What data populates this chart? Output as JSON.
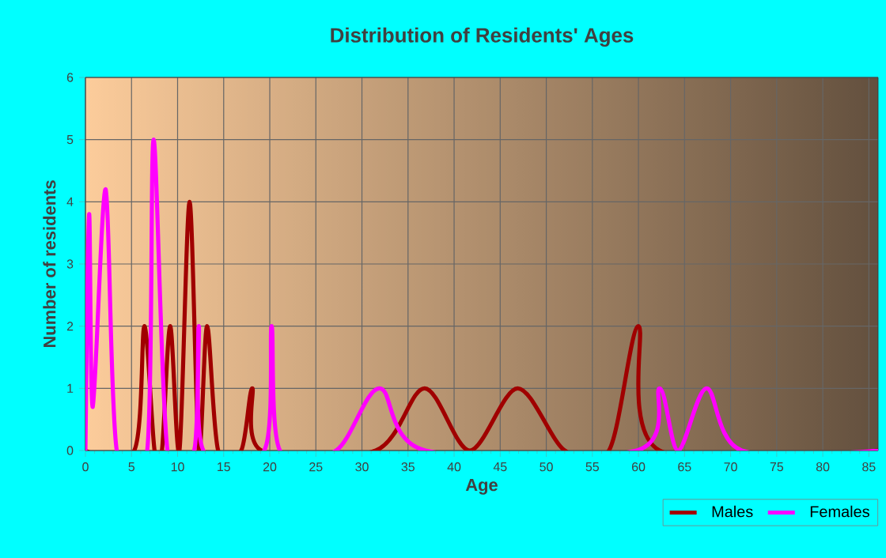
{
  "chart_data": {
    "type": "line",
    "title": "Distribution of Residents' Ages",
    "xlabel": "Age",
    "ylabel": "Number of residents",
    "xlim": [
      0,
      86
    ],
    "ylim": [
      0,
      6
    ],
    "xticks": [
      0,
      5,
      10,
      15,
      20,
      25,
      30,
      35,
      40,
      45,
      50,
      55,
      60,
      65,
      70,
      75,
      80,
      85
    ],
    "yticks": [
      0,
      1,
      2,
      3,
      4,
      5,
      6
    ],
    "grid": true,
    "legend": "bottom right",
    "marker": "none",
    "series": [
      {
        "name": "Males",
        "color": "#a00000",
        "x": [
          0,
          5.3,
          6.4,
          7.5,
          8.3,
          9.2,
          10.2,
          11.3,
          12.3,
          13.2,
          14.4,
          16.9,
          18.1,
          19.1,
          31.5,
          36.8,
          41.7,
          46.9,
          52.0,
          56.8,
          60.0,
          62.3,
          86
        ],
        "values": [
          0,
          0,
          2,
          0,
          0,
          2,
          0,
          4,
          0,
          2,
          0,
          0,
          1,
          0,
          0,
          1,
          0,
          1,
          0,
          0,
          2,
          0,
          0
        ]
      },
      {
        "name": "Females",
        "color": "#ff00ff",
        "x": [
          0,
          0.4,
          0.8,
          2.2,
          3.4,
          6.7,
          7.4,
          8.9,
          11.8,
          12.3,
          12.8,
          19.4,
          20.2,
          21.1,
          27.2,
          31.9,
          36.9,
          59.8,
          62.3,
          64.3,
          67.4,
          71.2,
          86
        ],
        "values": [
          0,
          3.8,
          0.7,
          4.2,
          0,
          0,
          5,
          0,
          0,
          2,
          0,
          0,
          2,
          0,
          0,
          1,
          0,
          0,
          1,
          0,
          1,
          0,
          0
        ]
      }
    ]
  }
}
